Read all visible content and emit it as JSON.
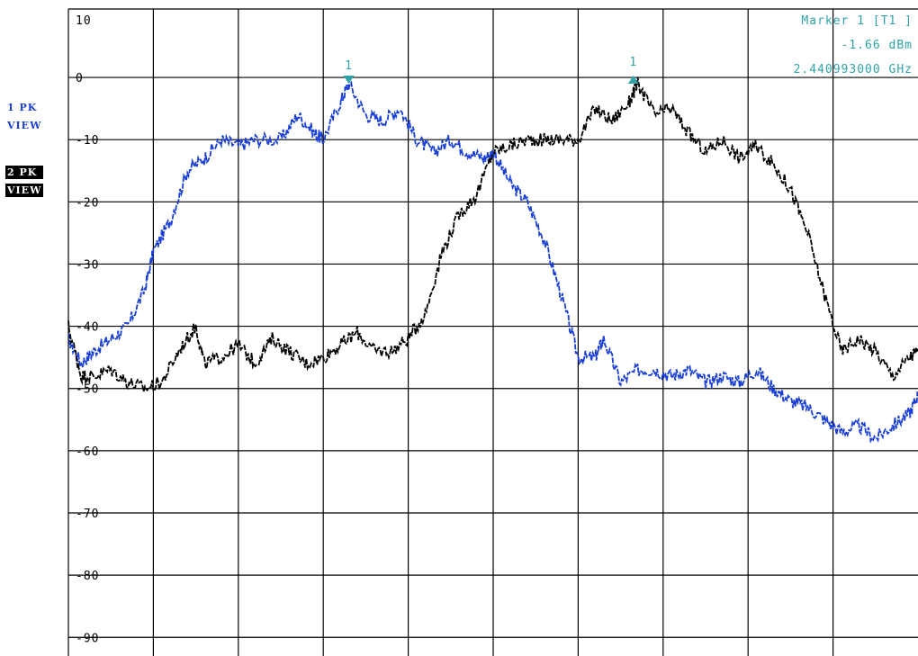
{
  "sidebar": {
    "trace1": {
      "line1": "1 PK",
      "line2": "VIEW"
    },
    "trace2": {
      "line1": "2 PK",
      "line2": "VIEW"
    }
  },
  "marker_readout": {
    "title": "Marker 1 [T1 ]",
    "level": "-1.66 dBm",
    "frequency": "2.440993000 GHz"
  },
  "colors": {
    "trace1": "#1a3fd6",
    "trace2": "#000000",
    "marker": "#2fa3a8",
    "grid": "#000000"
  },
  "chart_data": {
    "type": "line",
    "title": "",
    "xlabel": "",
    "ylabel": "",
    "ylim": [
      -93,
      11
    ],
    "xlim": [
      0,
      10
    ],
    "y_ticks": [
      10,
      0,
      -10,
      -20,
      -30,
      -40,
      -50,
      -60,
      -70,
      -80,
      -90
    ],
    "y_tick_labels": [
      "10",
      "0",
      "-10",
      "-20",
      "-30",
      "-40",
      "-50",
      "-60",
      "-70",
      "-80",
      "-90"
    ],
    "x_divisions": 10,
    "grid": true,
    "series": [
      {
        "trace": "1",
        "x": [
          0,
          0.15,
          0.3,
          0.5,
          0.7,
          0.9,
          1.0,
          1.2,
          1.4,
          1.6,
          1.8,
          2.0,
          2.2,
          2.5,
          2.7,
          2.9,
          3.0,
          3.2,
          3.3,
          3.5,
          3.7,
          3.9,
          4.1,
          4.3,
          4.5,
          4.7,
          4.9,
          5.0,
          5.2,
          5.4,
          5.6,
          5.8,
          6.0,
          6.2,
          6.3,
          6.5,
          6.7,
          6.9,
          7.1,
          7.3,
          7.5,
          7.7,
          7.9,
          8.1,
          8.3,
          8.5,
          8.7,
          8.9,
          9.1,
          9.3,
          9.5,
          9.7,
          9.9,
          10.0
        ],
        "values": [
          -42,
          -46,
          -44,
          -42,
          -40,
          -34,
          -28,
          -23,
          -15,
          -13,
          -10,
          -11,
          -10,
          -10,
          -6,
          -9,
          -10,
          -4,
          -1,
          -6,
          -7,
          -5,
          -10,
          -12,
          -10,
          -12,
          -13,
          -12,
          -17,
          -20,
          -26,
          -35,
          -45,
          -45,
          -42,
          -49,
          -47,
          -47,
          -48,
          -47,
          -49,
          -48,
          -49,
          -47,
          -50,
          -52,
          -53,
          -55,
          -57,
          -56,
          -58,
          -56,
          -54,
          -51
        ]
      },
      {
        "trace": "2",
        "x": [
          0,
          0.15,
          0.3,
          0.5,
          0.7,
          0.9,
          1.1,
          1.3,
          1.5,
          1.6,
          1.8,
          2.0,
          2.2,
          2.4,
          2.6,
          2.8,
          3.0,
          3.2,
          3.4,
          3.6,
          3.8,
          4.0,
          4.2,
          4.4,
          4.6,
          4.8,
          5.0,
          5.2,
          5.4,
          5.6,
          5.8,
          6.0,
          6.2,
          6.4,
          6.6,
          6.7,
          6.9,
          7.1,
          7.3,
          7.5,
          7.7,
          7.9,
          8.1,
          8.3,
          8.5,
          8.7,
          8.9,
          9.1,
          9.3,
          9.5,
          9.7,
          9.9,
          10.0
        ],
        "values": [
          -40,
          -48,
          -48,
          -47,
          -49,
          -50,
          -49,
          -44,
          -40,
          -46,
          -45,
          -43,
          -46,
          -42,
          -44,
          -46,
          -45,
          -43,
          -41,
          -44,
          -44,
          -42,
          -38,
          -28,
          -22,
          -19,
          -12,
          -11,
          -10,
          -10,
          -10,
          -10,
          -5,
          -7,
          -4,
          -1,
          -6,
          -5,
          -9,
          -12,
          -10,
          -13,
          -11,
          -14,
          -18,
          -25,
          -35,
          -44,
          -42,
          -44,
          -48,
          -45,
          -44
        ]
      }
    ],
    "markers": [
      {
        "label": "1",
        "trace": "1",
        "x": 3.3,
        "y": -1,
        "shape": "down"
      },
      {
        "label": "1",
        "trace": "2",
        "x": 6.65,
        "y": -1,
        "shape": "up"
      }
    ]
  }
}
